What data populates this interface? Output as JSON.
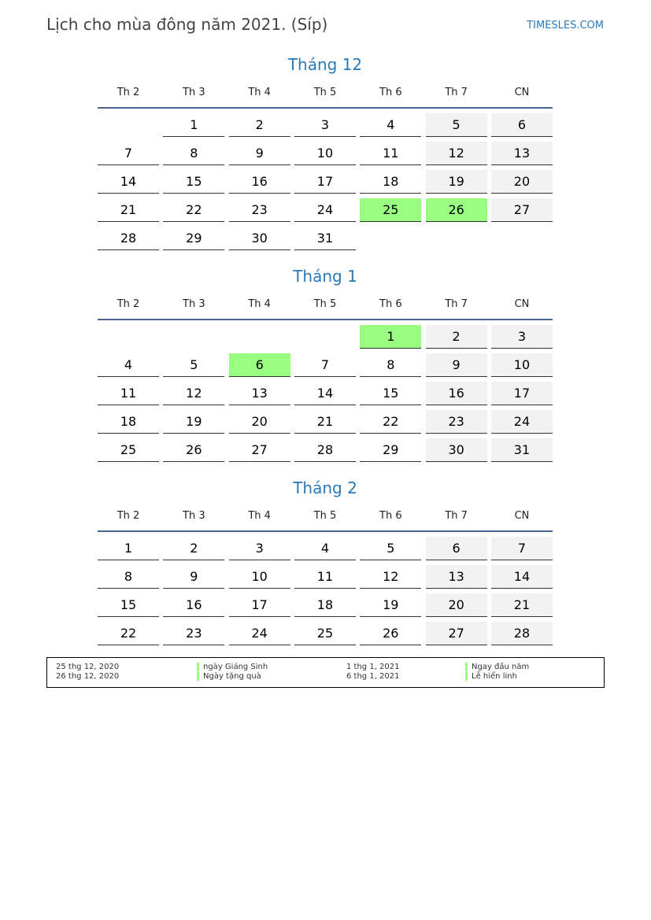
{
  "header": {
    "title": "Lịch cho mùa đông năm 2021. (Síp)",
    "site": "TIMESLES.COM"
  },
  "weekdays": [
    "Th 2",
    "Th 3",
    "Th 4",
    "Th 5",
    "Th 6",
    "Th 7",
    "CN"
  ],
  "colors": {
    "accent": "#2a7ab8",
    "holiday": "#99ff80",
    "weekend": "#f2f2f2"
  },
  "months": [
    {
      "title": "Tháng 12",
      "weeks": [
        [
          null,
          1,
          2,
          3,
          4,
          5,
          6
        ],
        [
          7,
          8,
          9,
          10,
          11,
          12,
          13
        ],
        [
          14,
          15,
          16,
          17,
          18,
          19,
          20
        ],
        [
          21,
          22,
          23,
          24,
          25,
          26,
          27
        ],
        [
          28,
          29,
          30,
          31,
          null,
          null,
          null
        ]
      ],
      "holidays": [
        25,
        26
      ]
    },
    {
      "title": "Tháng 1",
      "weeks": [
        [
          null,
          null,
          null,
          null,
          1,
          2,
          3
        ],
        [
          4,
          5,
          6,
          7,
          8,
          9,
          10
        ],
        [
          11,
          12,
          13,
          14,
          15,
          16,
          17
        ],
        [
          18,
          19,
          20,
          21,
          22,
          23,
          24
        ],
        [
          25,
          26,
          27,
          28,
          29,
          30,
          31
        ]
      ],
      "holidays": [
        1,
        6
      ]
    },
    {
      "title": "Tháng 2",
      "weeks": [
        [
          1,
          2,
          3,
          4,
          5,
          6,
          7
        ],
        [
          8,
          9,
          10,
          11,
          12,
          13,
          14
        ],
        [
          15,
          16,
          17,
          18,
          19,
          20,
          21
        ],
        [
          22,
          23,
          24,
          25,
          26,
          27,
          28
        ]
      ],
      "holidays": []
    }
  ],
  "legend": [
    {
      "date": "25 thg 12, 2020",
      "name": "ngày Giáng Sinh"
    },
    {
      "date": "26 thg 12, 2020",
      "name": "Ngày tặng quà"
    },
    {
      "date": "1 thg 1, 2021",
      "name": "Ngay đầu năm"
    },
    {
      "date": "6 thg 1, 2021",
      "name": "Lễ hiển linh"
    }
  ]
}
